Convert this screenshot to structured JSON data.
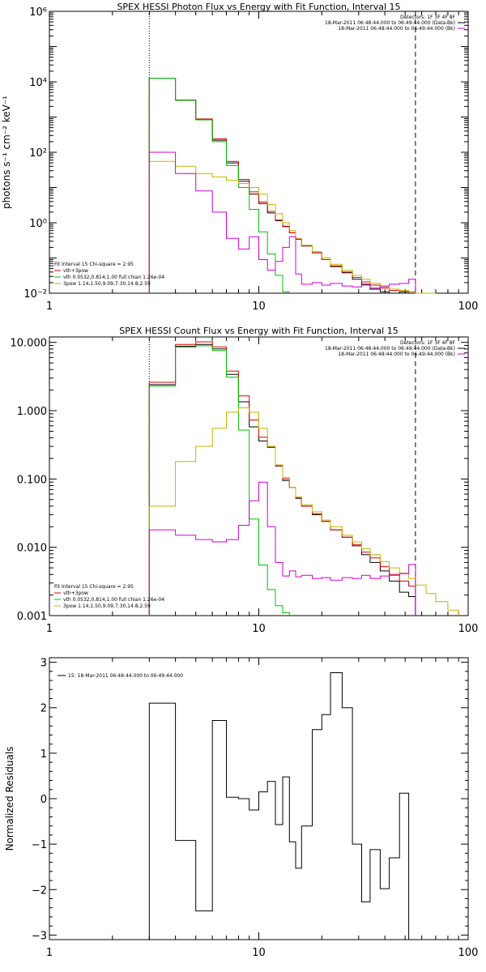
{
  "chart_data": [
    {
      "type": "line",
      "title": "SPEX HESSI Photon Flux vs Energy with Fit Function, Interval 15",
      "ylabel": "photons s⁻¹ cm⁻² keV⁻¹",
      "xlabel": "",
      "xscale": "log",
      "yscale": "log",
      "xlim": [
        1,
        100
      ],
      "ylim": [
        0.01,
        1000000
      ],
      "xticks": [
        1,
        10,
        100
      ],
      "xtick_labels": [
        "1",
        "10",
        "100"
      ],
      "yticks": [
        0.01,
        1,
        100,
        10000,
        1000000
      ],
      "ytick_labels": [
        "10⁻²",
        "10⁰",
        "10²",
        "10⁴",
        "10⁶"
      ],
      "grid": false,
      "legend_position": "top-right",
      "header_lines": [
        {
          "text": "Detectors: 1F 3F 4F 8F",
          "color": ""
        },
        {
          "text": "18-Mar-2011 06:48:44.000 to 06:49:44.000 (Data-Bk)",
          "color": "#000000"
        },
        {
          "text": "18-Mar-2011 06:48:44.000 to 06:49:44.000 (Bk)",
          "color": "#d100d1"
        }
      ],
      "fit_info": [
        {
          "text": "Fit Interval 15   Chi-square = 2.95",
          "color": ""
        },
        {
          "text": "vth+3pow",
          "color": "#e00000"
        },
        {
          "text": "vth 0.0532,0.814,1.00  full chian 1.26e-04",
          "color": "#00c000"
        },
        {
          "text": "3pow 1.14,1.50,9.09,7.30,14.8,2.59",
          "color": "#c8b400"
        }
      ],
      "vlines": [
        {
          "x": 3,
          "style": "dotted"
        },
        {
          "x": 56,
          "style": "dashed"
        }
      ],
      "edges": [
        3,
        4,
        5,
        6,
        7,
        8,
        9,
        10,
        11,
        12,
        13,
        14,
        15,
        16,
        18,
        20,
        22,
        25,
        28,
        31,
        34,
        38,
        42,
        47,
        52,
        56,
        63,
        70
      ],
      "series": [
        {
          "color": "#000000",
          "values": [
            12600,
            3000,
            850,
            220,
            50,
            15,
            6.5,
            3.5,
            1.9,
            1.15,
            0.78,
            0.52,
            0.34,
            0.22,
            0.14,
            0.09,
            0.057,
            0.038,
            0.025,
            0.018,
            0.013,
            0.011,
            0.009,
            0.011,
            0.009,
            null,
            null
          ]
        },
        {
          "color": "#e00000",
          "values": [
            12700,
            3050,
            880,
            240,
            55,
            17,
            7.5,
            3.9,
            2.1,
            1.2,
            0.8,
            0.52,
            0.34,
            0.22,
            0.14,
            0.09,
            0.06,
            0.04,
            0.028,
            0.021,
            0.017,
            0.014,
            0.012,
            0.012,
            0.011,
            null,
            null
          ]
        },
        {
          "color": "#00c000",
          "values": [
            12700,
            3000,
            830,
            200,
            42,
            10,
            2.4,
            0.55,
            0.13,
            0.032,
            0.011,
            null,
            null,
            null,
            null,
            null,
            null,
            null,
            null,
            null,
            null,
            null,
            null,
            null,
            null,
            null,
            null
          ]
        },
        {
          "color": "#c8b400",
          "values": [
            55,
            40,
            25,
            20,
            16,
            13,
            10,
            6.5,
            3.3,
            1.8,
            1.0,
            0.6,
            0.36,
            0.23,
            0.15,
            0.1,
            0.066,
            0.045,
            0.032,
            0.025,
            0.019,
            0.015,
            0.013,
            0.012,
            0.011,
            0.01,
            0.0095
          ]
        },
        {
          "color": "#d100d1",
          "values": [
            100,
            25,
            8,
            2,
            0.36,
            0.18,
            0.4,
            0.09,
            0.045,
            0.08,
            0.2,
            0.4,
            0.035,
            0.018,
            0.02,
            0.017,
            0.019,
            0.016,
            0.015,
            0.017,
            0.014,
            0.016,
            0.018,
            0.019,
            0.025,
            null,
            null
          ]
        }
      ]
    },
    {
      "type": "line",
      "title": "SPEX HESSI Count Flux vs Energy with Fit Function, Interval 15",
      "ylabel": "",
      "xlabel": "",
      "xscale": "log",
      "yscale": "log",
      "xlim": [
        1,
        100
      ],
      "ylim": [
        0.001,
        12
      ],
      "xticks": [
        1,
        10,
        100
      ],
      "xtick_labels": [
        "1",
        "10",
        "100"
      ],
      "yticks": [
        0.001,
        0.01,
        0.1,
        1,
        10
      ],
      "ytick_labels": [
        "0.001",
        "0.010",
        "0.100",
        "1.000",
        "10.000"
      ],
      "grid": false,
      "legend_position": "top-right",
      "header_lines": [
        {
          "text": "Detectors: 1F 3F 4F 8F",
          "color": ""
        },
        {
          "text": "18-Mar-2011 06:48:44.000 to 06:49:44.000 (Data-Bk)",
          "color": "#000000"
        },
        {
          "text": "18-Mar-2011 06:48:44.000 to 06:49:44.000 (Bk)",
          "color": "#d100d1"
        }
      ],
      "fit_info": [
        {
          "text": "Fit Interval 15   Chi-square = 2.95",
          "color": ""
        },
        {
          "text": "vth+3pow",
          "color": "#e00000"
        },
        {
          "text": "vth 0.0532,0.814,1.00  full chian 1.26e-04",
          "color": "#00c000"
        },
        {
          "text": "3pow 1.14,1.50,9.09,7.30,14.8,2.59",
          "color": "#c8b400"
        }
      ],
      "vlines": [
        {
          "x": 3,
          "style": "dotted"
        },
        {
          "x": 56,
          "style": "dashed"
        }
      ],
      "edges": [
        3,
        4,
        5,
        6,
        7,
        8,
        9,
        10,
        11,
        12,
        13,
        14,
        15,
        16,
        18,
        20,
        22,
        25,
        28,
        31,
        34,
        38,
        42,
        47,
        52,
        56,
        63,
        70,
        80,
        90
      ],
      "series": [
        {
          "color": "#000000",
          "values": [
            2.4,
            8.8,
            9.3,
            8.0,
            3.4,
            1.35,
            0.58,
            0.36,
            0.29,
            0.155,
            0.095,
            0.075,
            0.052,
            0.04,
            0.03,
            0.024,
            0.018,
            0.014,
            0.0105,
            0.0078,
            0.006,
            0.0045,
            0.0032,
            0.0022,
            0.0019,
            null,
            null,
            null,
            null
          ]
        },
        {
          "color": "#e00000",
          "values": [
            2.6,
            9.3,
            10.2,
            8.6,
            3.8,
            1.65,
            0.73,
            0.41,
            0.3,
            0.16,
            0.1,
            0.075,
            0.053,
            0.04,
            0.031,
            0.024,
            0.018,
            0.014,
            0.011,
            0.0085,
            0.007,
            0.0052,
            0.004,
            0.0032,
            0.0027,
            null,
            null,
            null,
            null
          ]
        },
        {
          "color": "#00c000",
          "values": [
            2.3,
            8.5,
            8.9,
            7.6,
            3.1,
            0.52,
            0.026,
            0.0055,
            0.0024,
            0.0014,
            0.0011,
            null,
            null,
            null,
            null,
            null,
            null,
            null,
            null,
            null,
            null,
            null,
            null,
            null,
            null,
            null,
            null,
            null,
            null
          ]
        },
        {
          "color": "#c8b400",
          "values": [
            0.04,
            0.18,
            0.3,
            0.55,
            0.95,
            1.1,
            0.95,
            0.55,
            0.3,
            0.16,
            0.105,
            0.075,
            0.055,
            0.042,
            0.033,
            0.025,
            0.02,
            0.015,
            0.012,
            0.0095,
            0.0078,
            0.0062,
            0.005,
            0.0042,
            0.0035,
            0.0028,
            0.0021,
            0.0016,
            0.0012
          ]
        },
        {
          "color": "#d100d1",
          "values": [
            0.018,
            0.015,
            0.013,
            0.012,
            0.013,
            0.021,
            0.048,
            0.09,
            0.02,
            0.006,
            0.0038,
            0.0045,
            0.0037,
            0.0039,
            0.0035,
            0.0036,
            0.0033,
            0.0036,
            0.0035,
            0.0039,
            0.0035,
            0.0038,
            0.0039,
            0.0041,
            0.0056,
            null,
            null,
            null,
            null
          ]
        }
      ]
    },
    {
      "type": "line",
      "title": "",
      "ylabel": "Normalized Residuals",
      "xlabel": "",
      "xscale": "log",
      "yscale": "linear",
      "xlim": [
        1,
        100
      ],
      "ylim": [
        -3.1,
        3.1
      ],
      "xticks": [
        1,
        10,
        100
      ],
      "xtick_labels": [
        "1",
        "10",
        "100"
      ],
      "yticks": [
        -3,
        -2,
        -1,
        0,
        1,
        2,
        3
      ],
      "ytick_labels": [
        "−3",
        "−2",
        "−1",
        "0",
        "1",
        "2",
        "3"
      ],
      "grid": false,
      "legend_position": "top-left",
      "header_lines": [],
      "fit_info": [],
      "vlines": [],
      "legend": [
        {
          "text": "15: 18-Mar-2011 06:48:44.000 to 06:49:44.000",
          "color": "#000000"
        }
      ],
      "edges": [
        3,
        4,
        5,
        6,
        7,
        8,
        9,
        10,
        11,
        12,
        13,
        14,
        15,
        16,
        18,
        20,
        22,
        25,
        28,
        31,
        34,
        38,
        42,
        47,
        52,
        56
      ],
      "series": [
        {
          "color": "#000000",
          "values": [
            2.1,
            -0.92,
            -2.47,
            1.72,
            0.03,
            0.0,
            -0.25,
            0.15,
            0.38,
            -0.57,
            0.48,
            -0.95,
            -1.53,
            -0.6,
            1.52,
            1.85,
            2.77,
            2.0,
            -1.0,
            -2.27,
            -1.12,
            -1.98,
            -1.3,
            0.12,
            -3.1
          ]
        }
      ]
    }
  ]
}
